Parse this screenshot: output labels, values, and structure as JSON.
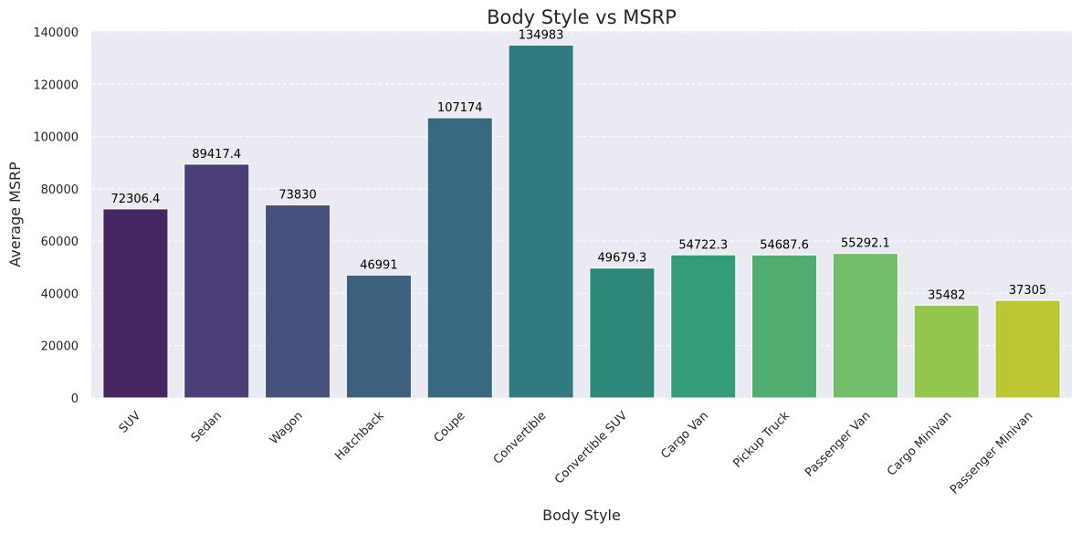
{
  "chart_data": {
    "type": "bar",
    "title": "Body Style vs MSRP",
    "xlabel": "Body Style",
    "ylabel": "Average MSRP",
    "ylim": [
      0,
      140000
    ],
    "yticks": [
      0,
      20000,
      40000,
      60000,
      80000,
      100000,
      120000,
      140000
    ],
    "grid": "y, dashed",
    "categories": [
      "SUV",
      "Sedan",
      "Wagon",
      "Hatchback",
      "Coupe",
      "Convertible",
      "Convertible SUV",
      "Cargo Van",
      "Pickup Truck",
      "Passenger Van",
      "Cargo Minivan",
      "Passenger Minivan"
    ],
    "values": [
      72306.4,
      89417.4,
      73830,
      46991,
      107174,
      134983,
      49679.3,
      54722.3,
      54687.6,
      55292.1,
      35482,
      37305
    ],
    "value_labels": [
      "72306.4",
      "89417.4",
      "73830",
      "46991",
      "107174",
      "134983",
      "49679.3",
      "54722.3",
      "54687.6",
      "55292.1",
      "35482",
      "37305"
    ],
    "colors": [
      "#472562",
      "#4a3d78",
      "#46527d",
      "#3d607f",
      "#376a80",
      "#307b7f",
      "#2e887a",
      "#359c78",
      "#51ac70",
      "#72bd68",
      "#94c64d",
      "#bac632"
    ],
    "background": "#eaeaf2"
  }
}
